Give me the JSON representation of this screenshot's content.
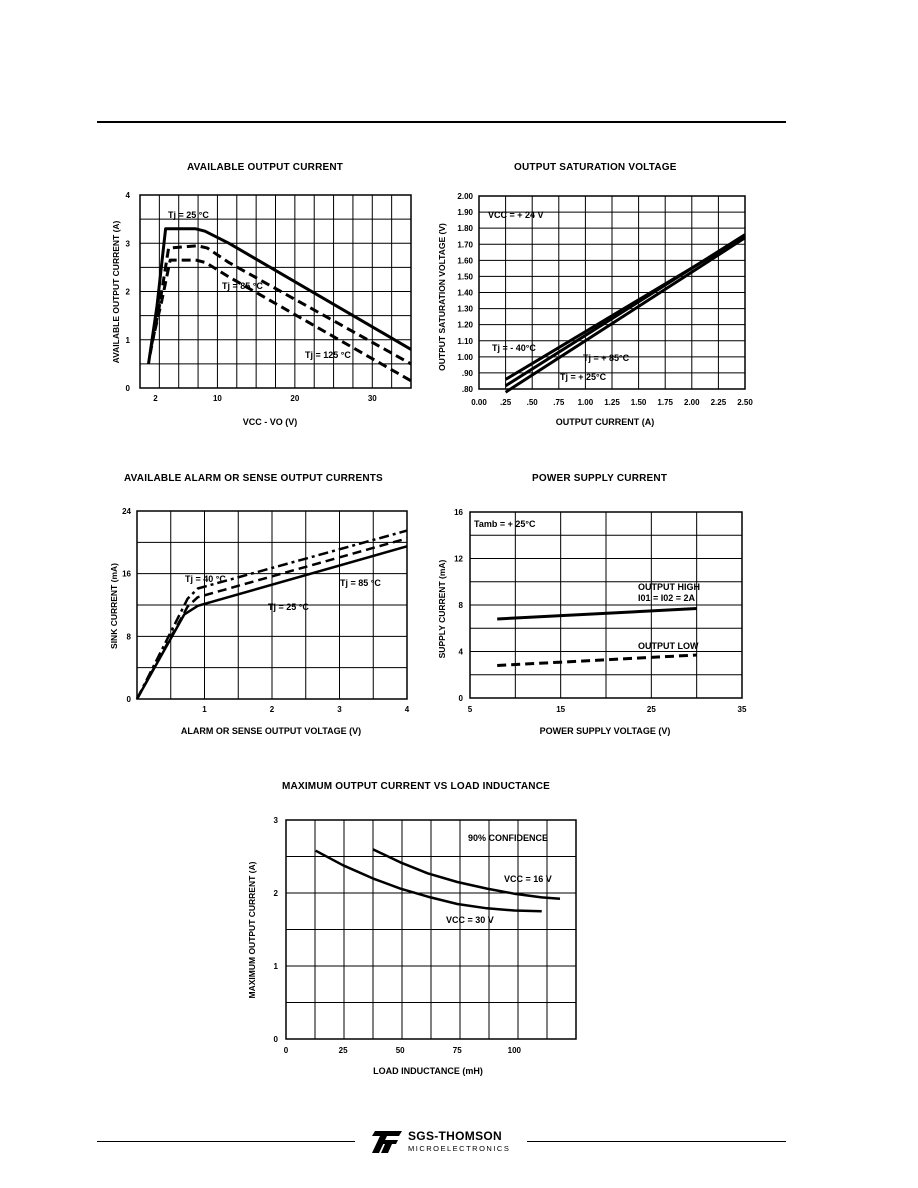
{
  "footer": {
    "brand": "SGS-THOMSON",
    "subtitle": "MICROELECTRONICS"
  },
  "chart_data": [
    {
      "type": "line",
      "title": "AVAILABLE OUTPUT CURRENT",
      "xlabel": "VCC - VO (V)",
      "ylabel": "AVAILABLE OUTPUT CURRENT (A)",
      "xlim": [
        0,
        35
      ],
      "ylim": [
        0,
        4
      ],
      "x_ticks": [
        "2",
        "10",
        "20",
        "30"
      ],
      "y_ticks": [
        "0",
        "1",
        "2",
        "3",
        "4"
      ],
      "grid": true,
      "series": [
        {
          "name": "Tj = 25 °C",
          "x": [
            1.1,
            2.2,
            3.3,
            7.2,
            8.4,
            11.5,
            35
          ],
          "y": [
            0.5,
            1.7,
            3.3,
            3.3,
            3.25,
            3.0,
            0.8
          ]
        },
        {
          "name": "Tj = 85 °C",
          "x": [
            1.3,
            2.5,
            3.7,
            7.4,
            8.7,
            11.5,
            35
          ],
          "y": [
            0.7,
            1.7,
            2.9,
            2.95,
            2.9,
            2.6,
            0.5
          ]
        },
        {
          "name": "Tj = 125 °C",
          "x": [
            1.5,
            2.8,
            3.9,
            7.2,
            8.5,
            11.5,
            35
          ],
          "y": [
            0.9,
            1.8,
            2.65,
            2.65,
            2.6,
            2.3,
            0.15
          ]
        }
      ]
    },
    {
      "type": "line",
      "title": "OUTPUT SATURATION VOLTAGE",
      "xlabel": "OUTPUT CURRENT (A)",
      "ylabel": "OUTPUT SATURATION VOLTAGE (V)",
      "xlim": [
        0,
        2.5
      ],
      "ylim": [
        0.8,
        2.0
      ],
      "x_ticks": [
        "0.00",
        ".25",
        ".50",
        ".75",
        "1.00",
        "1.25",
        "1.50",
        "1.75",
        "2.00",
        "2.25",
        "2.50"
      ],
      "y_ticks": [
        ".80",
        ".90",
        "1.00",
        "1.10",
        "1.20",
        "1.30",
        "1.40",
        "1.50",
        "1.60",
        "1.70",
        "1.80",
        "1.90",
        "2.00"
      ],
      "grid": true,
      "annotations": [
        "VCC = + 24 V"
      ],
      "series": [
        {
          "name": "Tj = - 40°C",
          "x": [
            0.25,
            2.5
          ],
          "y": [
            0.86,
            1.75
          ]
        },
        {
          "name": "Tj = + 85°C",
          "x": [
            0.25,
            2.5
          ],
          "y": [
            0.82,
            1.76
          ]
        },
        {
          "name": "Tj = + 25°C",
          "x": [
            0.25,
            2.5
          ],
          "y": [
            0.78,
            1.74
          ]
        }
      ]
    },
    {
      "type": "line",
      "title": "AVAILABLE ALARM OR SENSE OUTPUT CURRENTS",
      "xlabel": "ALARM OR SENSE OUTPUT VOLTAGE (V)",
      "ylabel": "SINK CURRENT (mA)",
      "xlim": [
        0,
        4
      ],
      "ylim": [
        0,
        24
      ],
      "x_ticks": [
        "1",
        "2",
        "3",
        "4"
      ],
      "y_ticks": [
        "0",
        "8",
        "16",
        "24"
      ],
      "grid": true,
      "series": [
        {
          "name": "Tj = 40 °C",
          "x": [
            0,
            0.75,
            0.9,
            4
          ],
          "y": [
            0,
            12.8,
            14.1,
            21.5
          ]
        },
        {
          "name": "Tj = 25 °C",
          "x": [
            0,
            0.75,
            0.9,
            4
          ],
          "y": [
            0,
            11.8,
            13.0,
            20.5
          ]
        },
        {
          "name": "Tj = 85 °C",
          "x": [
            0,
            0.7,
            0.9,
            4
          ],
          "y": [
            0,
            10.8,
            11.9,
            19.5
          ]
        }
      ]
    },
    {
      "type": "line",
      "title": "POWER SUPPLY CURRENT",
      "xlabel": "POWER SUPPLY  VOLTAGE (V)",
      "ylabel": "SUPPLY CURRENT (mA)",
      "xlim": [
        5,
        35
      ],
      "ylim": [
        0,
        16
      ],
      "x_ticks": [
        "5",
        "15",
        "25",
        "35"
      ],
      "y_ticks": [
        "0",
        "4",
        "8",
        "12",
        "16"
      ],
      "grid": true,
      "annotations": [
        "Tamb = + 25°C"
      ],
      "series": [
        {
          "name": "OUTPUT HIGH",
          "label2": "I01 = I02 = 2A",
          "x": [
            8,
            30
          ],
          "y": [
            6.8,
            7.7
          ]
        },
        {
          "name": "OUTPUT LOW",
          "x": [
            8,
            30
          ],
          "y": [
            2.8,
            3.7
          ]
        }
      ]
    },
    {
      "type": "line",
      "title": "MAXIMUM OUTPUT CURRENT VS LOAD INDUCTANCE",
      "xlabel": "LOAD INDUCTANCE (mH)",
      "ylabel": "MAXIMUM OUTPUT CURRENT (A)",
      "xlim": [
        0,
        127
      ],
      "ylim": [
        0,
        3
      ],
      "x_ticks": [
        "0",
        "25",
        "50",
        "75",
        "100"
      ],
      "y_ticks": [
        "0",
        "1",
        "2",
        "3"
      ],
      "grid": true,
      "annotations": [
        "90% CONFIDENCE"
      ],
      "series": [
        {
          "name": "VCC = 16 V",
          "x": [
            38,
            50,
            62,
            75,
            88,
            100,
            112,
            120
          ],
          "y": [
            2.6,
            2.42,
            2.27,
            2.15,
            2.06,
            1.99,
            1.94,
            1.92
          ]
        },
        {
          "name": "VCC = 30 V",
          "x": [
            13,
            25,
            38,
            50,
            62,
            75,
            88,
            100,
            112
          ],
          "y": [
            2.58,
            2.38,
            2.2,
            2.06,
            1.95,
            1.85,
            1.79,
            1.76,
            1.75
          ]
        }
      ]
    }
  ]
}
